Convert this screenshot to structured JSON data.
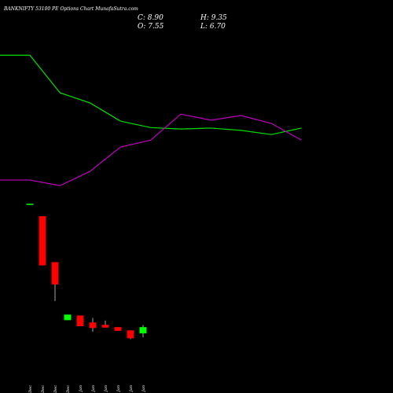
{
  "chart_data": {
    "type": "candlestick",
    "title": "BANKNIFTY 53100 PE Options Chart MunafaSutra.com",
    "info": [
      "C: 8.90",
      "H: 9.35",
      "O: 7.55",
      "L: 6.70"
    ],
    "categories": [
      "02 Dec",
      "19 Dec",
      "26 Dec",
      "31 Dec",
      "01 Jan",
      "02 Jan",
      "03 Jan",
      "06 Jan",
      "07 Jan",
      "08 Jan"
    ],
    "open": [
      35.4,
      32.8,
      22.9,
      10.4,
      11.4,
      9.9,
      9.4,
      8.9,
      8.2,
      7.55
    ],
    "high": [
      35.5,
      32.8,
      22.9,
      11.6,
      11.4,
      10.9,
      10.3,
      8.9,
      8.2,
      9.35
    ],
    "low": [
      35.4,
      22.2,
      14.5,
      10.4,
      9.1,
      7.9,
      8.8,
      8.1,
      6.3,
      6.7
    ],
    "close": [
      35.5,
      22.2,
      18.1,
      11.6,
      9.1,
      8.7,
      8.8,
      8.1,
      6.5,
      8.9
    ],
    "up_color": "#00ff00",
    "down_color": "#ff0000",
    "lines": [
      {
        "color": "#00e000",
        "values": [
          67.5,
          59.4,
          57.2,
          53.3,
          51.9,
          51.6,
          51.8,
          51.3,
          50.4,
          51.8
        ]
      },
      {
        "color": "#c000c0",
        "values": [
          40.6,
          39.4,
          42.5,
          47.7,
          49.2,
          54.8,
          53.5,
          54.5,
          52.8,
          49.2
        ]
      }
    ],
    "ylim": [
      -5.3,
      79.4
    ]
  }
}
